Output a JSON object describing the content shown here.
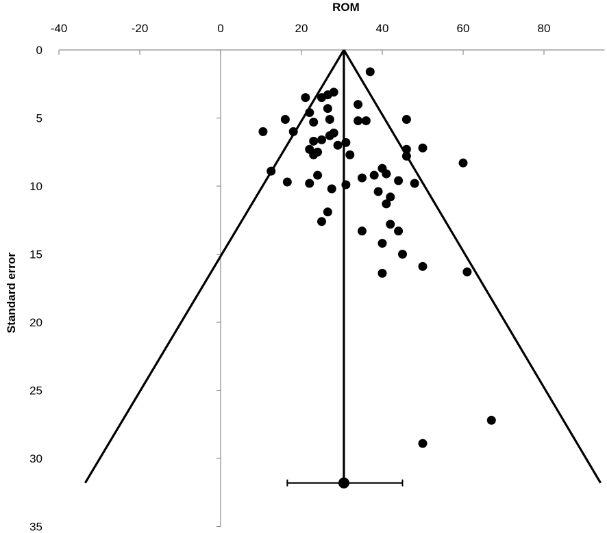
{
  "chart_data": {
    "type": "scatter",
    "title": "",
    "xlabel": "ROM",
    "ylabel": "Standard error",
    "xlim": [
      -40,
      95
    ],
    "ylim": [
      0,
      35
    ],
    "y_inverted": true,
    "x_axis_position": "top",
    "grid": false,
    "legend": "none",
    "x_ticks": [
      -40,
      -20,
      0,
      20,
      40,
      60,
      80
    ],
    "y_ticks": [
      0,
      5,
      10,
      15,
      20,
      25,
      30,
      35
    ],
    "colors": {
      "points": "#000000",
      "lines": "#000000",
      "axis": "#8c8c8c"
    },
    "pooled_estimate": {
      "x": 30.5,
      "y": 31.8,
      "ci": [
        16.5,
        45
      ]
    },
    "funnel": {
      "center_x": 30.5,
      "apex_y": 0,
      "base_y": 31.8,
      "left_x": -33.5,
      "right_x": 94
    },
    "points": [
      {
        "x": 37,
        "y": 1.6
      },
      {
        "x": 28,
        "y": 3.1
      },
      {
        "x": 26.5,
        "y": 3.3
      },
      {
        "x": 25,
        "y": 3.5
      },
      {
        "x": 21,
        "y": 3.5
      },
      {
        "x": 34,
        "y": 4.0
      },
      {
        "x": 26.5,
        "y": 4.3
      },
      {
        "x": 22,
        "y": 4.6
      },
      {
        "x": 16,
        "y": 5.1
      },
      {
        "x": 27,
        "y": 5.1
      },
      {
        "x": 34,
        "y": 5.2
      },
      {
        "x": 36,
        "y": 5.2
      },
      {
        "x": 46,
        "y": 5.1
      },
      {
        "x": 23,
        "y": 5.3
      },
      {
        "x": 10.5,
        "y": 6.0
      },
      {
        "x": 18,
        "y": 6.0
      },
      {
        "x": 28,
        "y": 6.1
      },
      {
        "x": 27,
        "y": 6.3
      },
      {
        "x": 25,
        "y": 6.6
      },
      {
        "x": 23,
        "y": 6.7
      },
      {
        "x": 31,
        "y": 6.8
      },
      {
        "x": 29,
        "y": 7.0
      },
      {
        "x": 50,
        "y": 7.2
      },
      {
        "x": 46,
        "y": 7.3
      },
      {
        "x": 22,
        "y": 7.3
      },
      {
        "x": 24,
        "y": 7.5
      },
      {
        "x": 23,
        "y": 7.7
      },
      {
        "x": 32,
        "y": 7.7
      },
      {
        "x": 46,
        "y": 7.8
      },
      {
        "x": 60,
        "y": 8.3
      },
      {
        "x": 40,
        "y": 8.7
      },
      {
        "x": 12.5,
        "y": 8.9
      },
      {
        "x": 41,
        "y": 9.1
      },
      {
        "x": 38,
        "y": 9.2
      },
      {
        "x": 24,
        "y": 9.2
      },
      {
        "x": 35,
        "y": 9.4
      },
      {
        "x": 44,
        "y": 9.6
      },
      {
        "x": 16.5,
        "y": 9.7
      },
      {
        "x": 22,
        "y": 9.8
      },
      {
        "x": 48,
        "y": 9.8
      },
      {
        "x": 31,
        "y": 9.9
      },
      {
        "x": 27.5,
        "y": 10.2
      },
      {
        "x": 39,
        "y": 10.4
      },
      {
        "x": 42,
        "y": 10.8
      },
      {
        "x": 41,
        "y": 11.3
      },
      {
        "x": 26.5,
        "y": 11.9
      },
      {
        "x": 25,
        "y": 12.6
      },
      {
        "x": 42,
        "y": 12.8
      },
      {
        "x": 35,
        "y": 13.3
      },
      {
        "x": 44,
        "y": 13.3
      },
      {
        "x": 40,
        "y": 14.2
      },
      {
        "x": 45,
        "y": 15.0
      },
      {
        "x": 50,
        "y": 15.9
      },
      {
        "x": 40,
        "y": 16.4
      },
      {
        "x": 61,
        "y": 16.3
      },
      {
        "x": 67,
        "y": 27.2
      },
      {
        "x": 50,
        "y": 28.9
      }
    ]
  }
}
